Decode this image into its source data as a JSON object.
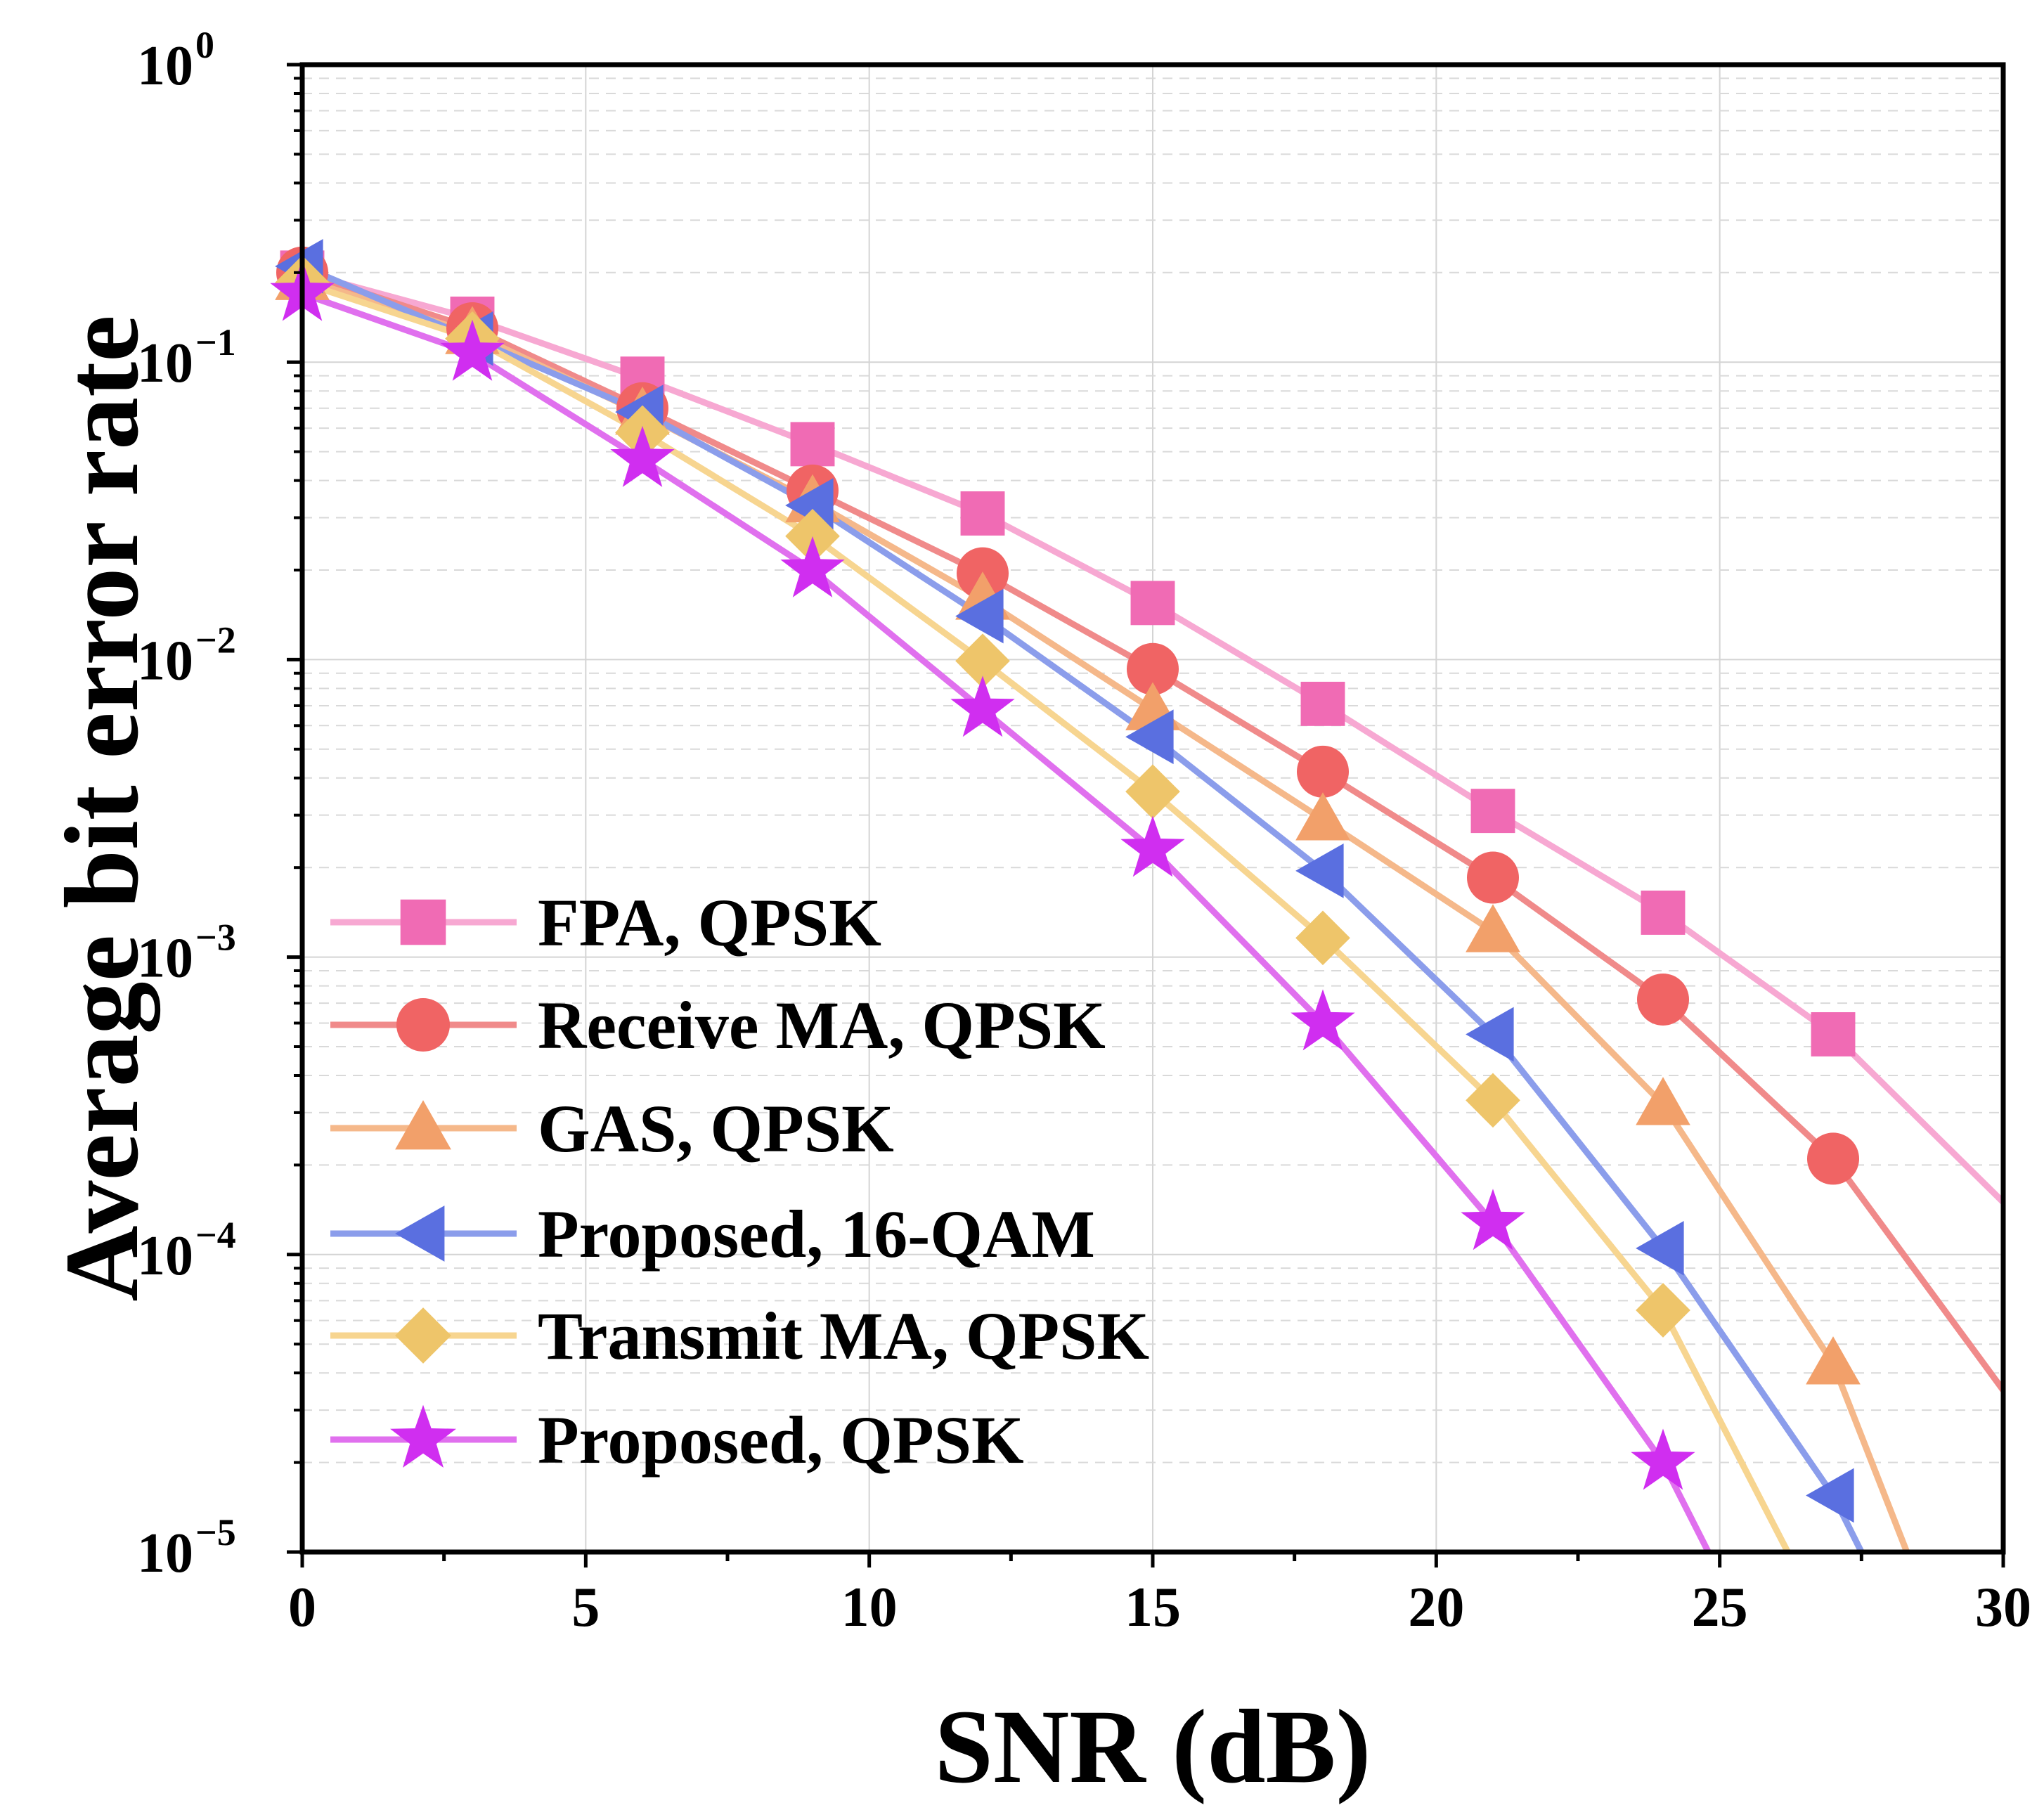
{
  "chart_data": {
    "type": "line",
    "title": "",
    "xlabel": "SNR (dB)",
    "ylabel": "Average bit error rate",
    "xlim": [
      0,
      30
    ],
    "ylim": [
      1e-05,
      1
    ],
    "yscale": "log",
    "grid": true,
    "legend_position": "bottom-left",
    "x_ticks": [
      0,
      5,
      10,
      15,
      20,
      25,
      30
    ],
    "y_ticks": [
      {
        "value": 1,
        "base": "10",
        "exp": "0"
      },
      {
        "value": 0.1,
        "base": "10",
        "exp": "−1"
      },
      {
        "value": 0.01,
        "base": "10",
        "exp": "−2"
      },
      {
        "value": 0.001,
        "base": "10",
        "exp": "−3"
      },
      {
        "value": 0.0001,
        "base": "10",
        "exp": "−4"
      },
      {
        "value": 1e-05,
        "base": "10",
        "exp": "−5"
      }
    ],
    "series": [
      {
        "name": "FPA, QPSK",
        "color": "#F7A8D2",
        "marker_color": "#F06BB4",
        "marker": "square",
        "x": [
          0,
          3,
          6,
          9,
          12,
          15,
          18,
          21,
          24,
          27,
          30
        ],
        "y": [
          0.2,
          0.14,
          0.088,
          0.053,
          0.031,
          0.0155,
          0.0071,
          0.0031,
          0.00141,
          0.00055,
          0.00015
        ],
        "marker_x": [
          0,
          3,
          6,
          9,
          12,
          15,
          18,
          21,
          24,
          27
        ]
      },
      {
        "name": "Receive MA, QPSK",
        "color": "#F08A8A",
        "marker_color": "#F06464",
        "marker": "circle",
        "x": [
          0,
          3,
          6,
          9,
          12,
          15,
          18,
          21,
          24,
          27,
          30
        ],
        "y": [
          0.2,
          0.13,
          0.07,
          0.037,
          0.0195,
          0.0093,
          0.0042,
          0.00185,
          0.00072,
          0.00021,
          3.5e-05
        ],
        "marker_x": [
          0,
          3,
          6,
          9,
          12,
          15,
          18,
          21,
          24,
          27
        ]
      },
      {
        "name": "GAS, QPSK",
        "color": "#F5B88A",
        "marker_color": "#F2A06A",
        "marker": "triangle-up",
        "x": [
          0,
          3,
          6,
          9,
          12,
          15,
          18,
          21,
          24,
          27,
          28.3
        ],
        "y": [
          0.19,
          0.125,
          0.067,
          0.034,
          0.016,
          0.0068,
          0.0029,
          0.00122,
          0.00032,
          4.3e-05,
          1e-05
        ],
        "marker_x": [
          0,
          3,
          6,
          9,
          12,
          15,
          18,
          21,
          24,
          27
        ]
      },
      {
        "name": "Proposed, 16-QAM",
        "color": "#8B9DEB",
        "marker_color": "#5A6FE0",
        "marker": "triangle-left",
        "x": [
          0,
          3,
          6,
          9,
          12,
          15,
          18,
          21,
          24,
          27,
          27.5
        ],
        "y": [
          0.21,
          0.12,
          0.068,
          0.033,
          0.014,
          0.0055,
          0.00195,
          0.00055,
          0.000105,
          1.55e-05,
          1e-05
        ],
        "marker_x": [
          0,
          3,
          6,
          9,
          12,
          15,
          18,
          21,
          24,
          27
        ]
      },
      {
        "name": "Transmit MA, QPSK",
        "color": "#F7D590",
        "marker_color": "#EEC56A",
        "marker": "diamond",
        "x": [
          0,
          3,
          6,
          9,
          12,
          15,
          18,
          21,
          24,
          26.2
        ],
        "y": [
          0.185,
          0.12,
          0.058,
          0.026,
          0.0099,
          0.0036,
          0.00116,
          0.00033,
          6.5e-05,
          1e-05
        ],
        "marker_x": [
          0,
          3,
          6,
          9,
          12,
          15,
          18,
          21,
          24
        ]
      },
      {
        "name": "Proposed, QPSK",
        "color": "#E070EE",
        "marker_color": "#D02EF0",
        "marker": "star",
        "x": [
          0,
          3,
          6,
          9,
          12,
          15,
          18,
          21,
          24,
          24.8
        ],
        "y": [
          0.17,
          0.107,
          0.047,
          0.02,
          0.0068,
          0.0023,
          0.0006,
          0.000128,
          2e-05,
          1e-05
        ],
        "marker_x": [
          0,
          3,
          6,
          9,
          12,
          15,
          18,
          21,
          24
        ]
      }
    ]
  }
}
